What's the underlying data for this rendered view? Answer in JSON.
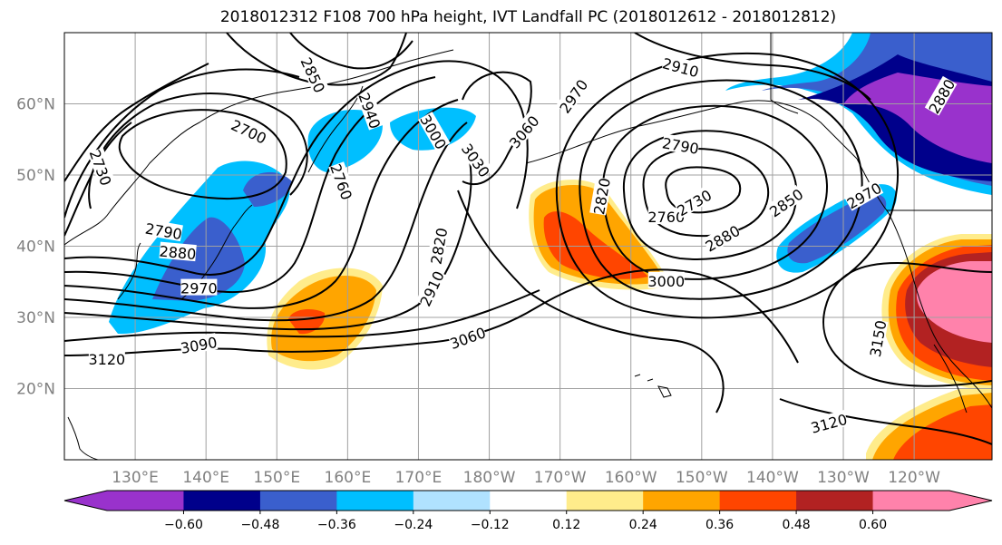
{
  "title": "2018012312 F108 700 hPa height, IVT Landfall PC (2018012612 - 2018012812)",
  "lat_ticks": [
    {
      "lat": 60,
      "label": "60°N"
    },
    {
      "lat": 50,
      "label": "50°N"
    },
    {
      "lat": 40,
      "label": "40°N"
    },
    {
      "lat": 30,
      "label": "30°N"
    },
    {
      "lat": 20,
      "label": "20°N"
    }
  ],
  "lon_ticks": [
    {
      "lon": 130,
      "label": "130°E"
    },
    {
      "lon": 140,
      "label": "140°E"
    },
    {
      "lon": 150,
      "label": "150°E"
    },
    {
      "lon": 160,
      "label": "160°E"
    },
    {
      "lon": 170,
      "label": "170°E"
    },
    {
      "lon": 180,
      "label": "180°W"
    },
    {
      "lon": 190,
      "label": "170°W"
    },
    {
      "lon": 200,
      "label": "160°W"
    },
    {
      "lon": 210,
      "label": "150°W"
    },
    {
      "lon": 220,
      "label": "140°W"
    },
    {
      "lon": 230,
      "label": "130°W"
    },
    {
      "lon": 240,
      "label": "120°W"
    }
  ],
  "colorbar": {
    "colors": [
      "#9932cc",
      "#00008b",
      "#3a5fcd",
      "#00bfff",
      "#b0e2ff",
      "#ffffff",
      "#ffec8b",
      "#ffa500",
      "#ff4500",
      "#b22222",
      "#ff82ab"
    ],
    "labels": [
      "−0.60",
      "−0.48",
      "−0.36",
      "−0.24",
      "−0.12",
      "0.12",
      "0.24",
      "0.36",
      "0.48",
      "0.60"
    ]
  },
  "contour_labels": [
    {
      "text": "2700",
      "lon": 146,
      "lat": 56,
      "rot": 25
    },
    {
      "text": "2730",
      "lon": 125,
      "lat": 51,
      "rot": 70
    },
    {
      "text": "2790",
      "lon": 134,
      "lat": 42,
      "rot": 10
    },
    {
      "text": "2880",
      "lon": 136,
      "lat": 39,
      "rot": 5
    },
    {
      "text": "2970",
      "lon": 139,
      "lat": 34,
      "rot": 0
    },
    {
      "text": "3090",
      "lon": 139,
      "lat": 26,
      "rot": -10
    },
    {
      "text": "3120",
      "lon": 126,
      "lat": 24,
      "rot": 0
    },
    {
      "text": "2850",
      "lon": 155,
      "lat": 64,
      "rot": 65
    },
    {
      "text": "2940",
      "lon": 163,
      "lat": 59,
      "rot": 70
    },
    {
      "text": "2760",
      "lon": 159,
      "lat": 49,
      "rot": 70
    },
    {
      "text": "3000",
      "lon": 172,
      "lat": 56,
      "rot": 60
    },
    {
      "text": "3030",
      "lon": 178,
      "lat": 52,
      "rot": 55
    },
    {
      "text": "3060",
      "lon": 185,
      "lat": 56,
      "rot": -50
    },
    {
      "text": "2820",
      "lon": 173,
      "lat": 40,
      "rot": -80
    },
    {
      "text": "2910",
      "lon": 172,
      "lat": 34,
      "rot": -65
    },
    {
      "text": "3060",
      "lon": 177,
      "lat": 27,
      "rot": -20
    },
    {
      "text": "2970",
      "lon": 192,
      "lat": 61,
      "rot": -55
    },
    {
      "text": "2910",
      "lon": 207,
      "lat": 65,
      "rot": 15
    },
    {
      "text": "2790",
      "lon": 207,
      "lat": 54,
      "rot": 10
    },
    {
      "text": "2820",
      "lon": 196,
      "lat": 47,
      "rot": -80
    },
    {
      "text": "2760",
      "lon": 205,
      "lat": 44,
      "rot": 0
    },
    {
      "text": "2730",
      "lon": 209,
      "lat": 46,
      "rot": -30
    },
    {
      "text": "2880",
      "lon": 213,
      "lat": 41,
      "rot": -30
    },
    {
      "text": "2850",
      "lon": 222,
      "lat": 46,
      "rot": -35
    },
    {
      "text": "3000",
      "lon": 205,
      "lat": 35,
      "rot": 0
    },
    {
      "text": "2970",
      "lon": 233,
      "lat": 47,
      "rot": -30
    },
    {
      "text": "2880",
      "lon": 244,
      "lat": 61,
      "rot": -60
    },
    {
      "text": "3150",
      "lon": 235,
      "lat": 27,
      "rot": -80
    },
    {
      "text": "3120",
      "lon": 228,
      "lat": 15,
      "rot": -15
    }
  ]
}
